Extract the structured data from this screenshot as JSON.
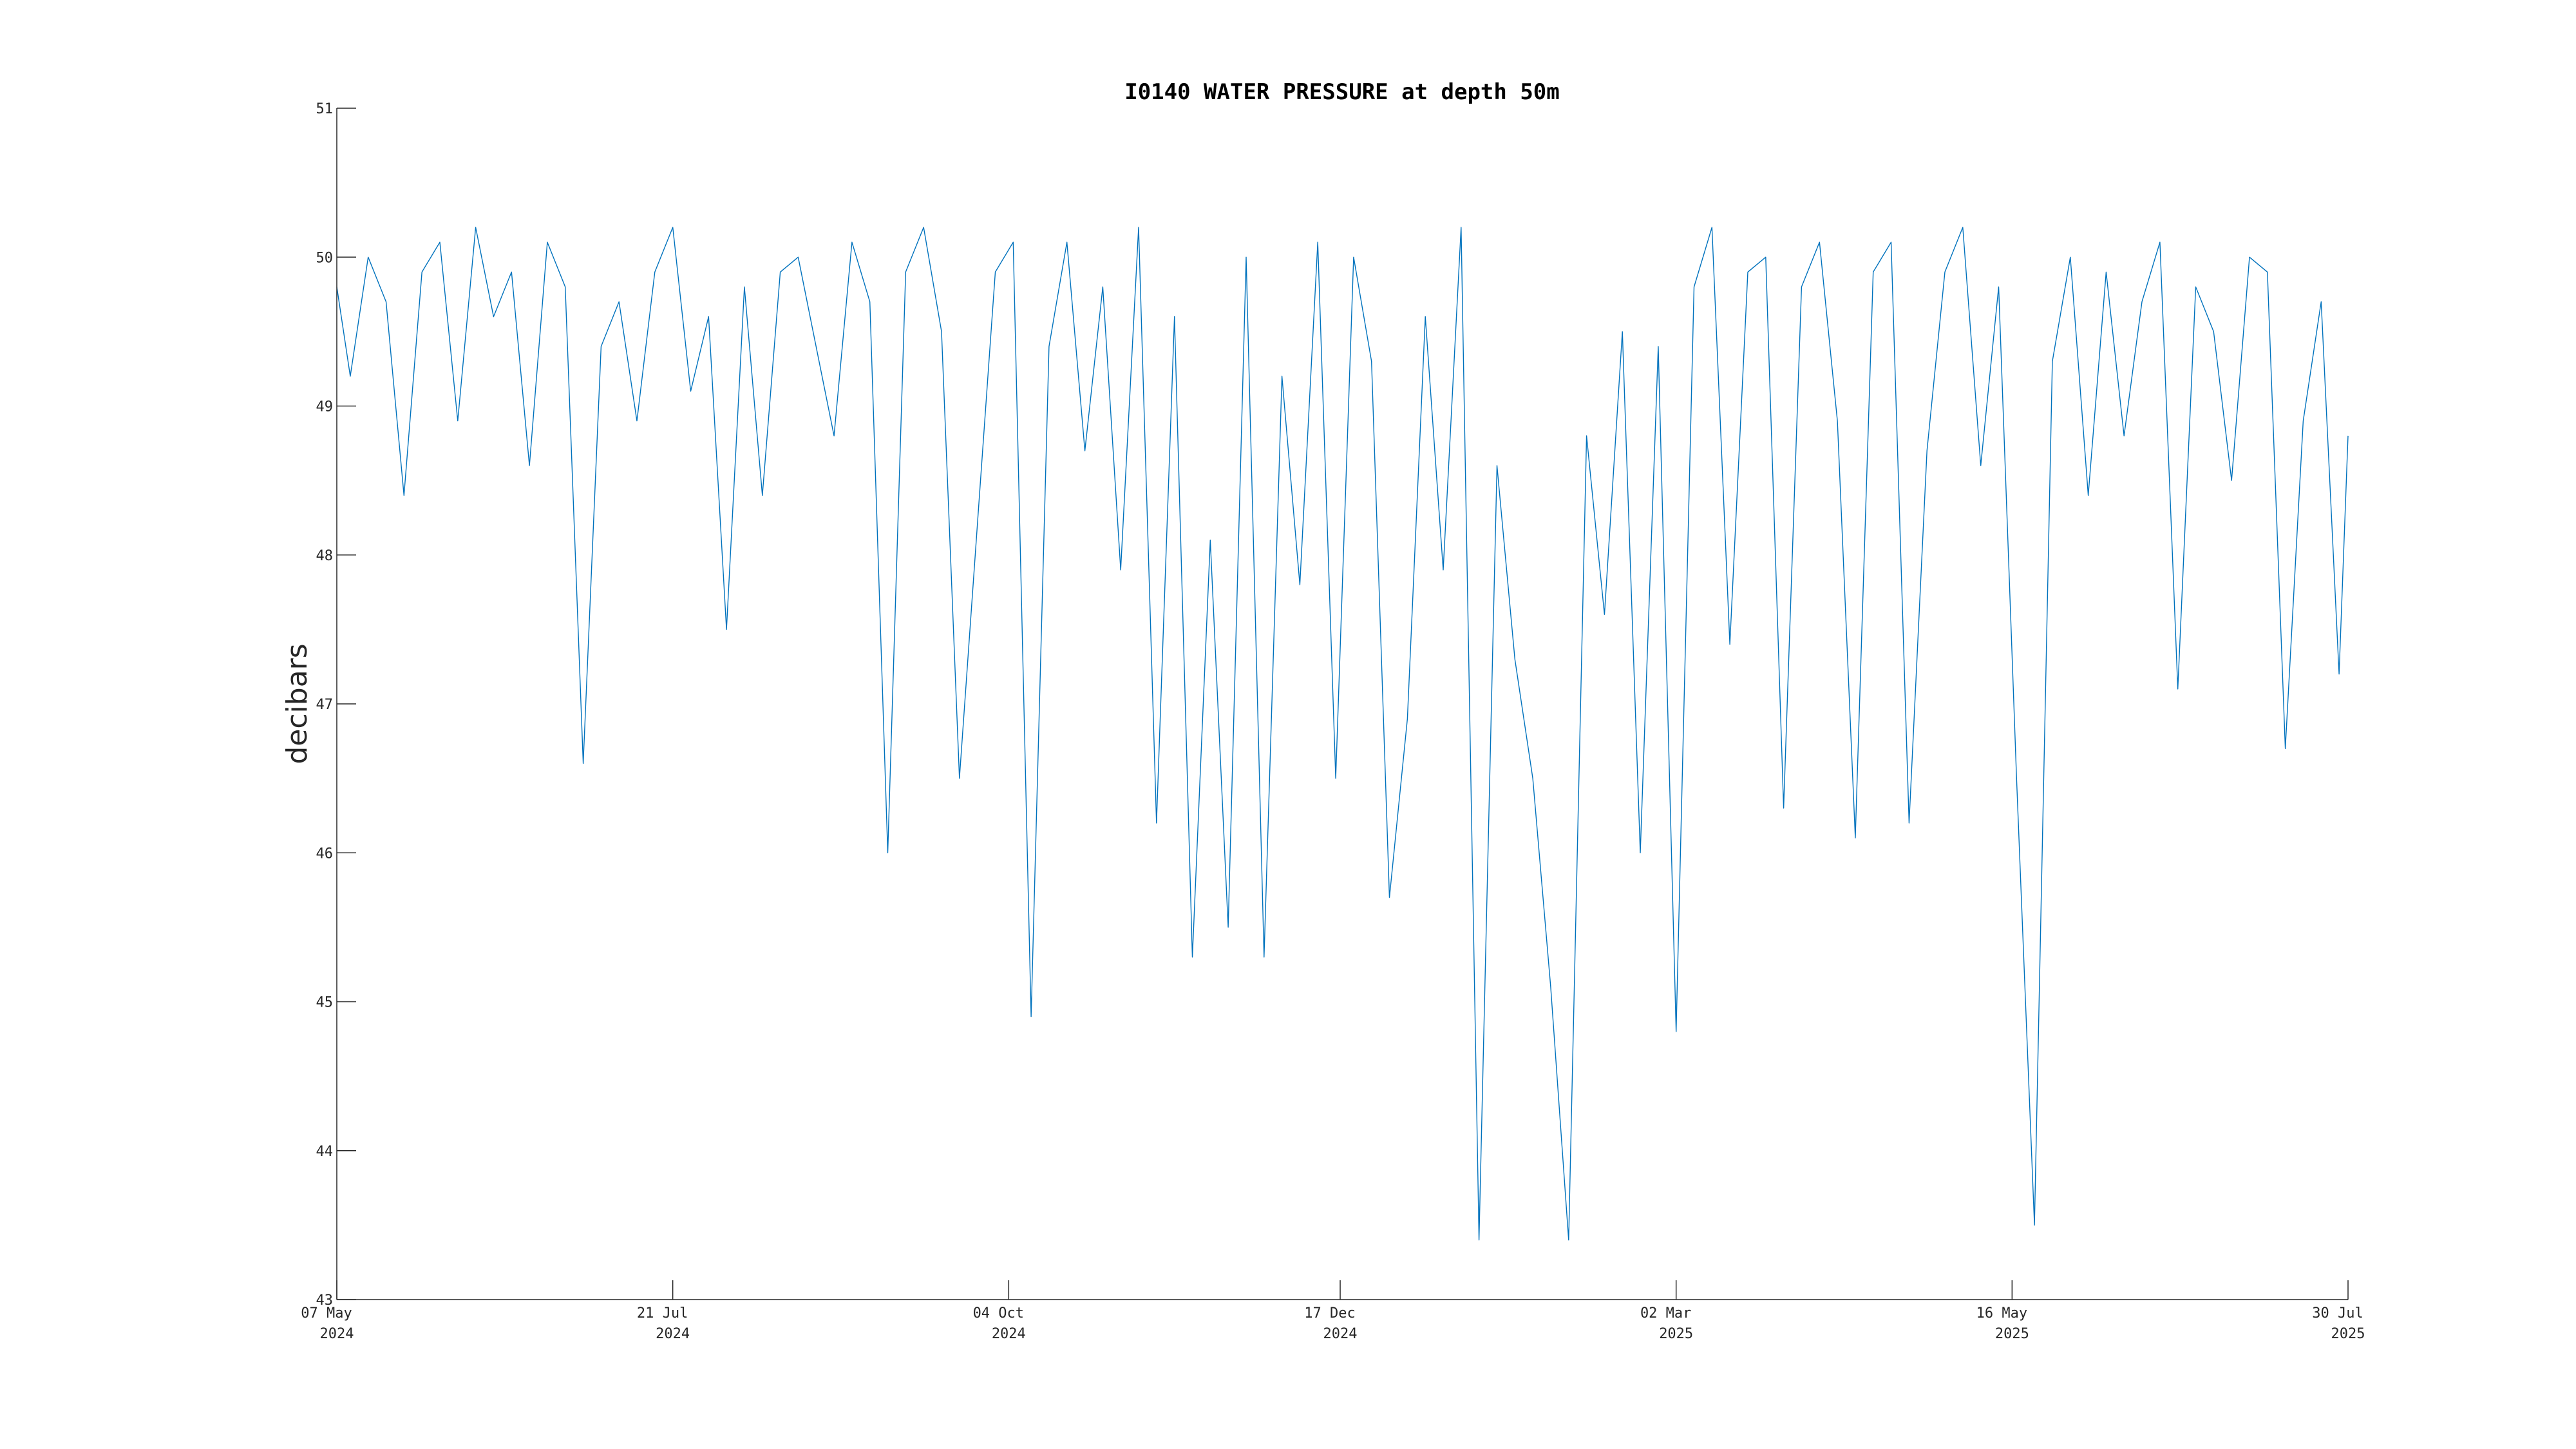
{
  "chart_data": {
    "type": "line",
    "title": "I0140 WATER PRESSURE at depth 50m",
    "xlabel": "",
    "ylabel": "decibars",
    "ylim": [
      43,
      51
    ],
    "yticks": [
      43,
      44,
      45,
      46,
      47,
      48,
      49,
      50,
      51
    ],
    "xlim": [
      "2024-05-07",
      "2025-07-30"
    ],
    "xticks": [
      {
        "date": "2024-05-07",
        "line1": "07 May",
        "line2": "2024"
      },
      {
        "date": "2024-07-21",
        "line1": "21 Jul",
        "line2": "2024"
      },
      {
        "date": "2024-10-04",
        "line1": "04 Oct",
        "line2": "2024"
      },
      {
        "date": "2024-12-17",
        "line1": "17 Dec",
        "line2": "2024"
      },
      {
        "date": "2025-03-02",
        "line1": "02 Mar",
        "line2": "2025"
      },
      {
        "date": "2025-05-16",
        "line1": "16 May",
        "line2": "2025"
      },
      {
        "date": "2025-07-30",
        "line1": "30 Jul",
        "line2": "2025"
      }
    ],
    "grid": false,
    "series": [
      {
        "color": "#0072bd",
        "x": [
          "2024-05-07",
          "2024-05-10",
          "2024-05-14",
          "2024-05-18",
          "2024-05-22",
          "2024-05-26",
          "2024-05-30",
          "2024-06-03",
          "2024-06-07",
          "2024-06-11",
          "2024-06-15",
          "2024-06-19",
          "2024-06-23",
          "2024-06-27",
          "2024-07-01",
          "2024-07-05",
          "2024-07-09",
          "2024-07-13",
          "2024-07-17",
          "2024-07-21",
          "2024-07-25",
          "2024-07-29",
          "2024-08-02",
          "2024-08-06",
          "2024-08-10",
          "2024-08-14",
          "2024-08-18",
          "2024-08-22",
          "2024-08-26",
          "2024-08-30",
          "2024-09-03",
          "2024-09-07",
          "2024-09-11",
          "2024-09-15",
          "2024-09-19",
          "2024-09-23",
          "2024-09-27",
          "2024-10-01",
          "2024-10-05",
          "2024-10-09",
          "2024-10-13",
          "2024-10-17",
          "2024-10-21",
          "2024-10-25",
          "2024-10-29",
          "2024-11-02",
          "2024-11-06",
          "2024-11-10",
          "2024-11-14",
          "2024-11-18",
          "2024-11-22",
          "2024-11-26",
          "2024-11-30",
          "2024-12-04",
          "2024-12-08",
          "2024-12-12",
          "2024-12-16",
          "2024-12-20",
          "2024-12-24",
          "2024-12-28",
          "2025-01-01",
          "2025-01-05",
          "2025-01-09",
          "2025-01-13",
          "2025-01-17",
          "2025-01-21",
          "2025-01-25",
          "2025-01-29",
          "2025-02-02",
          "2025-02-06",
          "2025-02-10",
          "2025-02-14",
          "2025-02-18",
          "2025-02-22",
          "2025-02-26",
          "2025-03-02",
          "2025-03-06",
          "2025-03-10",
          "2025-03-14",
          "2025-03-18",
          "2025-03-22",
          "2025-03-26",
          "2025-03-30",
          "2025-04-03",
          "2025-04-07",
          "2025-04-11",
          "2025-04-15",
          "2025-04-19",
          "2025-04-23",
          "2025-04-27",
          "2025-05-01",
          "2025-05-05",
          "2025-05-09",
          "2025-05-13",
          "2025-05-17",
          "2025-05-21",
          "2025-05-25",
          "2025-05-29",
          "2025-06-02",
          "2025-06-06",
          "2025-06-10",
          "2025-06-14",
          "2025-06-18",
          "2025-06-22",
          "2025-06-26",
          "2025-06-30",
          "2025-07-04",
          "2025-07-08",
          "2025-07-12",
          "2025-07-16",
          "2025-07-20",
          "2025-07-24",
          "2025-07-28",
          "2025-07-30"
        ],
        "y": [
          49.8,
          49.2,
          50.0,
          49.7,
          48.4,
          49.9,
          50.1,
          48.9,
          50.2,
          49.6,
          49.9,
          48.6,
          50.1,
          49.8,
          46.6,
          49.4,
          49.7,
          48.9,
          49.9,
          50.2,
          49.1,
          49.6,
          47.5,
          49.8,
          48.4,
          49.9,
          50.0,
          49.4,
          48.8,
          50.1,
          49.7,
          46.0,
          49.9,
          50.2,
          49.5,
          46.5,
          48.2,
          49.9,
          50.1,
          44.9,
          49.4,
          50.1,
          48.7,
          49.8,
          47.9,
          50.2,
          46.2,
          49.6,
          45.3,
          48.1,
          45.5,
          50.0,
          45.3,
          49.2,
          47.8,
          50.1,
          46.5,
          50.0,
          49.3,
          45.7,
          46.9,
          49.6,
          47.9,
          50.2,
          43.4,
          48.6,
          47.3,
          46.5,
          45.1,
          43.4,
          48.8,
          47.6,
          49.5,
          46.0,
          49.4,
          44.8,
          49.8,
          50.2,
          47.4,
          49.9,
          50.0,
          46.3,
          49.8,
          50.1,
          48.9,
          46.1,
          49.9,
          50.1,
          46.2,
          48.7,
          49.9,
          50.2,
          48.6,
          49.8,
          46.5,
          43.5,
          49.3,
          50.0,
          48.4,
          49.9,
          48.8,
          49.7,
          50.1,
          47.1,
          49.8,
          49.5,
          48.5,
          50.0,
          49.9,
          46.7,
          48.9,
          49.7,
          47.2,
          48.8
        ]
      }
    ]
  }
}
